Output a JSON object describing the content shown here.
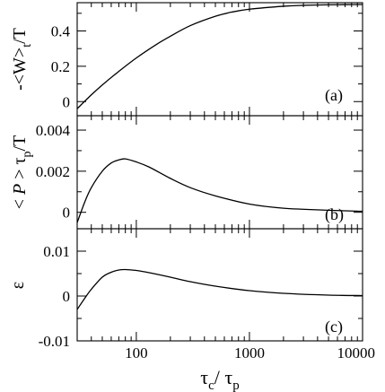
{
  "chart_data": [
    {
      "type": "line",
      "panel_label": "(a)",
      "ylabel": "-<W>t/T",
      "ylabel_parts": {
        "main": "-<W>",
        "sub": "t",
        "tail": "/T"
      },
      "xscale": "log",
      "xlim": [
        30,
        10000
      ],
      "ylim": [
        -0.08,
        0.56
      ],
      "yticks": [
        0,
        0.2,
        0.4
      ],
      "ytick_labels": [
        "0",
        "0.2",
        "0.4"
      ],
      "series": [
        {
          "x": [
            30,
            40,
            50,
            70,
            100,
            150,
            200,
            300,
            500,
            700,
            1000,
            2000,
            3000,
            5000,
            7000,
            10000
          ],
          "y": [
            -0.04,
            0.038,
            0.094,
            0.171,
            0.247,
            0.323,
            0.37,
            0.43,
            0.483,
            0.507,
            0.523,
            0.54,
            0.545,
            0.548,
            0.549,
            0.55
          ]
        }
      ]
    },
    {
      "type": "line",
      "panel_label": "(b)",
      "ylabel": "<P>tp/T",
      "ylabel_parts": {
        "main": "< ",
        "italic": "P",
        "mid": " > τ",
        "sub": "p",
        "tail": "/T"
      },
      "xscale": "log",
      "xlim": [
        30,
        10000
      ],
      "ylim": [
        -0.0008,
        0.0047
      ],
      "yticks": [
        0,
        0.002,
        0.004
      ],
      "ytick_labels": [
        "0",
        "0.002",
        "0.004"
      ],
      "series": [
        {
          "x": [
            30,
            35,
            40,
            50,
            60,
            70,
            80,
            100,
            130,
            200,
            300,
            500,
            1000,
            2000,
            5000,
            10000
          ],
          "y": [
            -0.0005,
            0.0005,
            0.0012,
            0.002,
            0.0024,
            0.00255,
            0.0026,
            0.00245,
            0.0022,
            0.00165,
            0.0012,
            0.0008,
            0.0004,
            0.0002,
            0.0001,
            5e-05
          ]
        }
      ]
    },
    {
      "type": "line",
      "panel_label": "(c)",
      "ylabel": "ε",
      "xlabel": "τc/ τp",
      "xlabel_parts": {
        "a": "τ",
        "asub": "c",
        "mid": "/ τ",
        "bsub": "p"
      },
      "xscale": "log",
      "xlim": [
        30,
        10000
      ],
      "ylim": [
        -0.01,
        0.015
      ],
      "yticks": [
        -0.01,
        0,
        0.01
      ],
      "ytick_labels": [
        "-0.01",
        "0",
        "0.01"
      ],
      "xticks": [
        100,
        1000,
        10000
      ],
      "xtick_labels": [
        "100",
        "1000",
        "10000"
      ],
      "series": [
        {
          "x": [
            30,
            35,
            40,
            50,
            60,
            70,
            80,
            100,
            130,
            200,
            300,
            500,
            1000,
            2000,
            5000,
            10000
          ],
          "y": [
            -0.003,
            -0.0005,
            0.0015,
            0.0042,
            0.0053,
            0.0058,
            0.0059,
            0.0057,
            0.0052,
            0.0042,
            0.0032,
            0.0022,
            0.0012,
            0.0006,
            0.0002,
            0.0001
          ]
        }
      ]
    }
  ]
}
